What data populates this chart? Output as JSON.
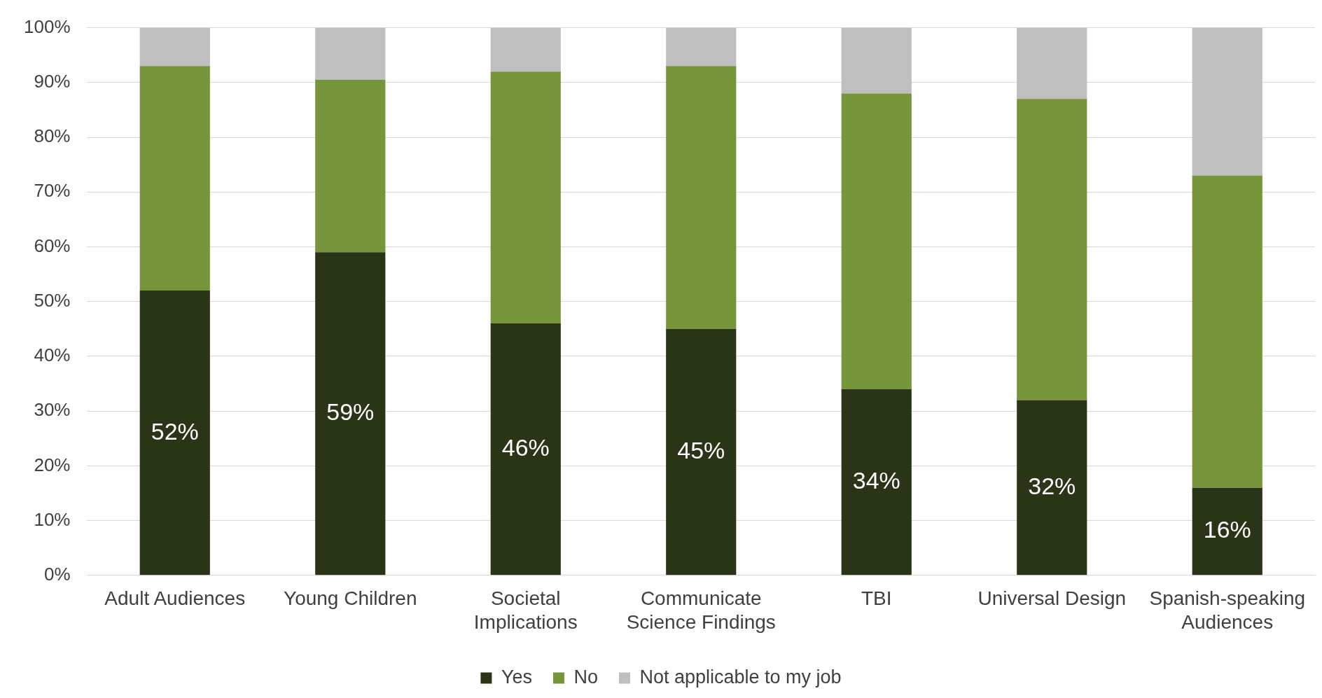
{
  "chart_data": {
    "type": "bar",
    "stacked": true,
    "categories": [
      "Adult Audiences",
      "Young Children",
      "Societal Implications",
      "Communicate Science Findings",
      "TBI",
      "Universal Design",
      "Spanish-speaking Audiences"
    ],
    "series": [
      {
        "name": "Yes",
        "color": "#2a3517",
        "values": [
          52,
          59,
          46,
          45,
          34,
          32,
          16
        ],
        "value_labels": [
          "52%",
          "59%",
          "46%",
          "45%",
          "34%",
          "32%",
          "16%"
        ]
      },
      {
        "name": "No",
        "color": "#77963c",
        "values": [
          41,
          31.5,
          46,
          48,
          54,
          55,
          57
        ]
      },
      {
        "name": "Not applicable to my job",
        "color": "#bfbfbf",
        "values": [
          7,
          9.5,
          8,
          7,
          12,
          13,
          27
        ]
      }
    ],
    "ylim": [
      0,
      100
    ],
    "yticks": [
      {
        "value": 0,
        "label": "0%"
      },
      {
        "value": 10,
        "label": "10%"
      },
      {
        "value": 20,
        "label": "20%"
      },
      {
        "value": 30,
        "label": "30%"
      },
      {
        "value": 40,
        "label": "40%"
      },
      {
        "value": 50,
        "label": "50%"
      },
      {
        "value": 60,
        "label": "60%"
      },
      {
        "value": 70,
        "label": "70%"
      },
      {
        "value": 80,
        "label": "80%"
      },
      {
        "value": 90,
        "label": "90%"
      },
      {
        "value": 100,
        "label": "100%"
      }
    ],
    "grid": "y",
    "legend": "bottom"
  }
}
